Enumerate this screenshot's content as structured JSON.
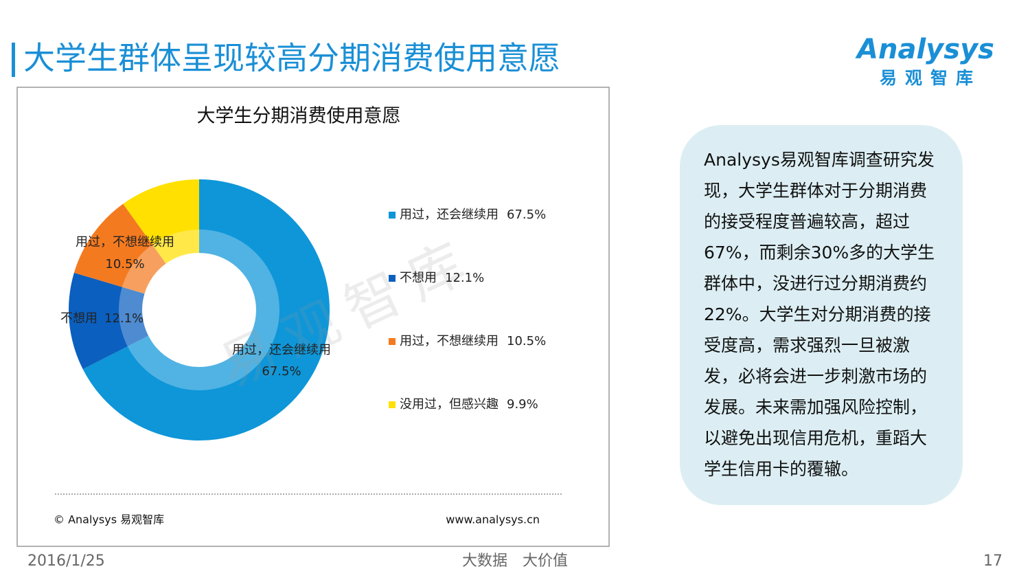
{
  "header": {
    "title": "大学生群体呈现较高分期消费使用意愿"
  },
  "logo": {
    "brand": "Analysys",
    "subtitle": "易观智库"
  },
  "chart_data": {
    "type": "donut",
    "title": "大学生分期消费使用意愿",
    "categories": [
      "用过，还会继续用",
      "不想用",
      "用过，不想继续用",
      "没用过，但感兴趣"
    ],
    "values": [
      67.5,
      12.1,
      10.5,
      9.9
    ],
    "value_labels": [
      "67.5%",
      "12.1%",
      "10.5%",
      "9.9%"
    ],
    "colors": [
      "#0e96d8",
      "#0b5fbf",
      "#f47a20",
      "#ffe000"
    ],
    "legend": "right",
    "watermark": "易观智库"
  },
  "chart_footer": {
    "copyright": "© Analysys 易观智库",
    "url": "www.analysys.cn"
  },
  "summary_lines": [
    "Analysys易观智库调查研究发",
    "现，大学生群体对于分期消费",
    "的接受程度普遍较高，超过",
    "67%，而剩余30%多的大学生",
    "群体中，没进行过分期消费约",
    "22%。大学生对分期消费的接",
    "受度高，需求强烈一旦被激",
    "发，必将会进一步刺激市场的",
    "发展。未来需加强风险控制，",
    "以避免出现信用危机，重蹈大",
    "学生信用卡的覆辙。"
  ],
  "footer": {
    "date": "2016/1/25",
    "slogan": "大数据　大价值",
    "page": "17"
  }
}
